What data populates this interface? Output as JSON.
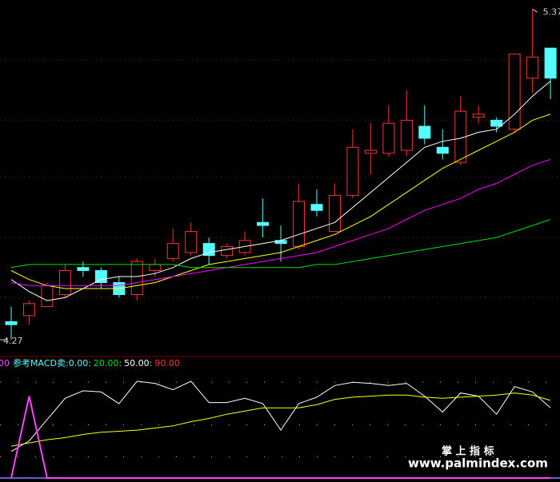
{
  "chart_data": [
    {
      "type": "candlestick",
      "ylim": [
        4.23,
        5.4
      ],
      "ygrid": [
        5.2,
        5.0,
        4.81,
        4.61,
        4.41
      ],
      "up_color": "#ff3232",
      "down_color": "#54ffff",
      "high_label": 5.37,
      "low_label": 4.27,
      "candles": [
        {
          "open": 4.33,
          "high": 4.38,
          "low": 4.27,
          "close": 4.32
        },
        {
          "open": 4.35,
          "high": 4.4,
          "low": 4.32,
          "close": 4.39
        },
        {
          "open": 4.38,
          "high": 4.46,
          "low": 4.38,
          "close": 4.45
        },
        {
          "open": 4.42,
          "high": 4.52,
          "low": 4.41,
          "close": 4.5
        },
        {
          "open": 4.51,
          "high": 4.53,
          "low": 4.48,
          "close": 4.5
        },
        {
          "open": 4.5,
          "high": 4.51,
          "low": 4.44,
          "close": 4.46
        },
        {
          "open": 4.46,
          "high": 4.48,
          "low": 4.41,
          "close": 4.42
        },
        {
          "open": 4.42,
          "high": 4.54,
          "low": 4.4,
          "close": 4.53
        },
        {
          "open": 4.5,
          "high": 4.54,
          "low": 4.48,
          "close": 4.52
        },
        {
          "open": 4.54,
          "high": 4.64,
          "low": 4.53,
          "close": 4.59
        },
        {
          "open": 4.56,
          "high": 4.66,
          "low": 4.55,
          "close": 4.63
        },
        {
          "open": 4.59,
          "high": 4.61,
          "low": 4.52,
          "close": 4.55
        },
        {
          "open": 4.55,
          "high": 4.59,
          "low": 4.54,
          "close": 4.58
        },
        {
          "open": 4.56,
          "high": 4.63,
          "low": 4.55,
          "close": 4.6
        },
        {
          "open": 4.66,
          "high": 4.74,
          "low": 4.61,
          "close": 4.65
        },
        {
          "open": 4.6,
          "high": 4.65,
          "low": 4.53,
          "close": 4.59
        },
        {
          "open": 4.58,
          "high": 4.79,
          "low": 4.57,
          "close": 4.73
        },
        {
          "open": 4.72,
          "high": 4.77,
          "low": 4.68,
          "close": 4.7
        },
        {
          "open": 4.63,
          "high": 4.79,
          "low": 4.63,
          "close": 4.75
        },
        {
          "open": 4.75,
          "high": 4.97,
          "low": 4.74,
          "close": 4.91
        },
        {
          "open": 4.89,
          "high": 4.99,
          "low": 4.82,
          "close": 4.9
        },
        {
          "open": 4.89,
          "high": 5.05,
          "low": 4.88,
          "close": 4.99
        },
        {
          "open": 4.9,
          "high": 5.1,
          "low": 4.88,
          "close": 5.0
        },
        {
          "open": 4.98,
          "high": 5.05,
          "low": 4.92,
          "close": 4.94
        },
        {
          "open": 4.91,
          "high": 4.97,
          "low": 4.87,
          "close": 4.89
        },
        {
          "open": 4.86,
          "high": 5.08,
          "low": 4.85,
          "close": 5.03
        },
        {
          "open": 5.01,
          "high": 5.05,
          "low": 4.99,
          "close": 5.02
        },
        {
          "open": 5.0,
          "high": 5.01,
          "low": 4.96,
          "close": 4.98
        },
        {
          "open": 4.97,
          "high": 5.22,
          "low": 4.96,
          "close": 5.22
        },
        {
          "open": 5.14,
          "high": 5.37,
          "low": 5.09,
          "close": 5.21
        },
        {
          "open": 5.24,
          "high": 5.24,
          "low": 5.07,
          "close": 5.14
        }
      ],
      "series": [
        {
          "color": "#ffffff",
          "values": [
            4.47,
            4.43,
            4.4,
            4.41,
            4.44,
            4.47,
            4.48,
            4.48,
            4.49,
            4.51,
            4.54,
            4.56,
            4.57,
            4.58,
            4.59,
            4.6,
            4.62,
            4.64,
            4.66,
            4.71,
            4.76,
            4.81,
            4.86,
            4.91,
            4.93,
            4.94,
            4.96,
            4.97,
            5.02,
            5.08,
            5.13
          ]
        },
        {
          "color": "#ffff00",
          "values": [
            4.5,
            4.47,
            4.45,
            4.44,
            4.44,
            4.44,
            4.44,
            4.45,
            4.46,
            4.48,
            4.5,
            4.52,
            4.53,
            4.54,
            4.55,
            4.56,
            4.58,
            4.6,
            4.62,
            4.65,
            4.68,
            4.72,
            4.76,
            4.8,
            4.84,
            4.87,
            4.9,
            4.93,
            4.96,
            5.0,
            5.02
          ]
        },
        {
          "color": "#ff00ff",
          "values": [
            4.46,
            4.45,
            4.45,
            4.45,
            4.45,
            4.45,
            4.45,
            4.46,
            4.47,
            4.48,
            4.49,
            4.5,
            4.51,
            4.52,
            4.53,
            4.54,
            4.55,
            4.56,
            4.58,
            4.6,
            4.62,
            4.64,
            4.67,
            4.7,
            4.72,
            4.74,
            4.77,
            4.79,
            4.82,
            4.85,
            4.87
          ]
        },
        {
          "color": "#00e000",
          "values": [
            4.51,
            4.52,
            4.52,
            4.52,
            4.52,
            4.52,
            4.52,
            4.52,
            4.52,
            4.52,
            4.51,
            4.51,
            4.51,
            4.51,
            4.51,
            4.51,
            4.51,
            4.52,
            4.52,
            4.53,
            4.54,
            4.55,
            4.56,
            4.57,
            4.58,
            4.59,
            4.6,
            4.61,
            4.63,
            4.65,
            4.67
          ]
        }
      ]
    },
    {
      "type": "line",
      "cut_label": "00",
      "title": "参考MACD卖",
      "separator": ":",
      "ylim": [
        0,
        100
      ],
      "levels": [
        {
          "value": 0,
          "label": "0.00",
          "color": "#54ffff"
        },
        {
          "value": 20,
          "label": "20.00",
          "color": "#00e000"
        },
        {
          "value": 50,
          "label": "50.00",
          "color": "#ffffff"
        },
        {
          "value": 90,
          "label": "90.00",
          "color": "#ff3232"
        }
      ],
      "series": [
        {
          "color": "#ffffff",
          "values": [
            25,
            35,
            55,
            75,
            82,
            81,
            70,
            91,
            89,
            83,
            91,
            71,
            71,
            75,
            70,
            45,
            70,
            76,
            87,
            90,
            89,
            87,
            89,
            77,
            62,
            80,
            77,
            60,
            86,
            81,
            66
          ]
        },
        {
          "color": "#ffff00",
          "values": [
            30,
            33,
            36,
            38,
            41,
            43,
            44,
            45,
            47,
            49,
            53,
            56,
            60,
            63,
            66,
            66,
            66,
            69,
            74,
            76,
            77,
            78,
            78,
            76,
            75,
            76,
            77,
            78,
            80,
            78,
            73
          ]
        },
        {
          "color": "#ff44ff",
          "values": [
            0,
            77,
            0,
            0,
            0,
            0,
            0,
            0,
            0,
            0,
            0,
            0,
            0,
            0,
            0,
            0,
            0,
            0,
            0,
            0,
            0,
            0,
            0,
            0,
            0,
            0,
            0,
            0,
            0,
            0,
            0
          ]
        }
      ]
    }
  ],
  "watermark": {
    "title": "掌 上 指 标",
    "url": "www.palmindex.com"
  }
}
